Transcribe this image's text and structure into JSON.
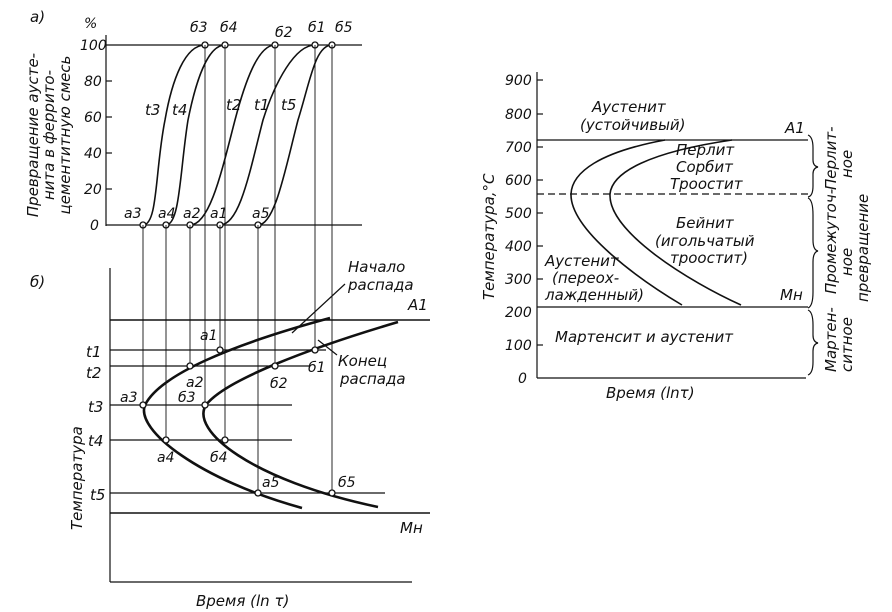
{
  "panel_a": {
    "letter": "а)",
    "y_unit": "%",
    "y_ticks": [
      "100",
      "80",
      "60",
      "40",
      "20",
      "0"
    ],
    "y_label_lines": [
      "Превращение аусте-",
      "нита в феррито-",
      "цементитную смесь"
    ],
    "curves": [
      {
        "temp": "t3",
        "start": "a3",
        "end": "б3"
      },
      {
        "temp": "t4",
        "start": "a4",
        "end": "б4"
      },
      {
        "temp": "t2",
        "start": "a2",
        "end": "б2"
      },
      {
        "temp": "t1",
        "start": "a1",
        "end": "б1"
      },
      {
        "temp": "t5",
        "start": "a5",
        "end": "б5"
      }
    ]
  },
  "panel_b": {
    "letter": "б)",
    "y_label": "Температура",
    "x_label": "Время (ln τ)",
    "a1_line": "A1",
    "mn_line": "Мн",
    "start_label": [
      "Начало",
      "распада"
    ],
    "end_label": [
      "Конец",
      "распада"
    ],
    "temps": [
      "t1",
      "t2",
      "t3",
      "t4",
      "t5"
    ],
    "start_points": [
      "a1",
      "a2",
      "a3",
      "a4",
      "a5"
    ],
    "end_points": [
      "б1",
      "б2",
      "б3",
      "б4",
      "б5"
    ]
  },
  "panel_c": {
    "y_label": "Температура,°С",
    "x_label": "Время (lnτ)",
    "y_ticks": [
      "900",
      "800",
      "700",
      "600",
      "500",
      "400",
      "300",
      "200",
      "100",
      "0"
    ],
    "a1_line": "A1",
    "mn_line": "Mн",
    "regions": {
      "austenite_stable": [
        "Аустенит",
        "(устойчивый)"
      ],
      "pearlite": [
        "Перлит",
        "Сорбит",
        "Троостит"
      ],
      "bainite": [
        "Бейнит",
        "(игольчатый",
        "троостит)"
      ],
      "austenite_supercooled": [
        "Аустенит",
        "(переох-",
        "лажденный)"
      ],
      "martensite": "Мартенсит и аустенит"
    },
    "brackets": {
      "pearlite": [
        "Перлит-",
        "ное"
      ],
      "intermediate": [
        "Промежуточ-",
        "ное",
        "превращение"
      ],
      "martensite": [
        "Мартен-",
        "ситное"
      ]
    }
  }
}
